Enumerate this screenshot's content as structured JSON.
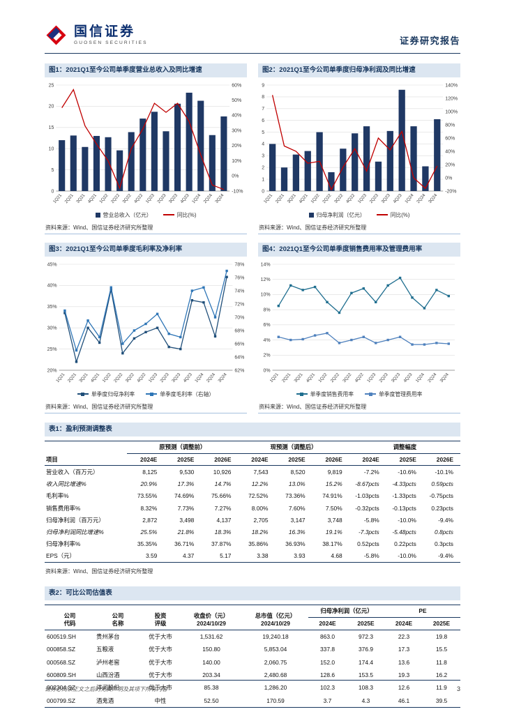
{
  "header": {
    "brand_cn": "国信证券",
    "brand_en": "GUOSEN SECURITIES",
    "report_type": "证券研究报告"
  },
  "source_note": "资料来源：Wind、国信证券经济研究所整理",
  "footer": {
    "disclaimer": "请务必阅读正文之后的免责声明及其项下所有内容",
    "page_number": "3"
  },
  "colors": {
    "navy": "#17365D",
    "bar_blue": "#1F3864",
    "line_red": "#C00000",
    "caption_bg": "#DCE6F1"
  },
  "charts": [
    {
      "title": "图1：2021Q1至今公司单季度营业总收入及同比增速",
      "chart_data": {
        "type": "bar-line",
        "categories": [
          "1Q21",
          "2Q21",
          "3Q21",
          "4Q21",
          "1Q22",
          "2Q22",
          "3Q22",
          "4Q22",
          "1Q23",
          "2Q23",
          "3Q23",
          "4Q23",
          "1Q24",
          "2Q24",
          "3Q24"
        ],
        "series": [
          {
            "name": "营业总收入（亿元）",
            "type": "bar",
            "axis": "left",
            "color": "#1F3864",
            "values": [
              12.0,
              13.1,
              10.4,
              13.0,
              12.7,
              9.6,
              13.9,
              17.1,
              18.7,
              14.1,
              20.6,
              23.2,
              21.3,
              13.2,
              17.6
            ]
          },
          {
            "name": "同比(%)",
            "type": "line",
            "axis": "right",
            "color": "#C00000",
            "marker": false,
            "values": [
              45,
              57,
              33,
              21,
              10,
              -8,
              18,
              31,
              48,
              42,
              48,
              36,
              14,
              -6,
              -9
            ]
          }
        ],
        "left_axis": {
          "min": 0,
          "max": 25,
          "step": 5,
          "fmt": ""
        },
        "right_axis": {
          "min": -10,
          "max": 60,
          "step": 10,
          "fmt": "%"
        }
      }
    },
    {
      "title": "图2：2021Q1至今公司单季度归母净利润及同比增速",
      "chart_data": {
        "type": "bar-line",
        "categories": [
          "1Q21",
          "2Q21",
          "3Q21",
          "4Q21",
          "1Q22",
          "2Q22",
          "3Q22",
          "4Q22",
          "1Q23",
          "2Q23",
          "3Q23",
          "4Q23",
          "1Q24",
          "2Q24",
          "3Q24"
        ],
        "series": [
          {
            "name": "归母净利润（亿元）",
            "type": "bar",
            "axis": "left",
            "color": "#1F3864",
            "values": [
              4.0,
              2.0,
              3.1,
              3.4,
              5.0,
              1.6,
              3.6,
              4.9,
              5.5,
              2.5,
              5.1,
              8.6,
              5.5,
              2.1,
              6.1
            ]
          },
          {
            "name": "同比(%)",
            "type": "line",
            "axis": "right",
            "color": "#C00000",
            "marker": false,
            "values": [
              125,
              48,
              40,
              22,
              25,
              -18,
              16,
              44,
              10,
              60,
              42,
              70,
              0,
              -16,
              18
            ]
          }
        ],
        "left_axis": {
          "min": 0,
          "max": 9,
          "step": 1,
          "fmt": ""
        },
        "right_axis": {
          "min": -20,
          "max": 140,
          "step": 20,
          "fmt": "%"
        }
      }
    },
    {
      "title": "图3：2021Q1至今公司单季度毛利率及净利率",
      "chart_data": {
        "type": "line",
        "categories": [
          "1Q21",
          "2Q21",
          "3Q21",
          "4Q21",
          "1Q22",
          "2Q22",
          "3Q22",
          "4Q22",
          "1Q23",
          "2Q23",
          "3Q23",
          "4Q23",
          "1Q24",
          "2Q24",
          "3Q24"
        ],
        "series": [
          {
            "name": "单季度归母净利率",
            "type": "line",
            "axis": "left",
            "color": "#1F4E79",
            "marker": true,
            "values": [
              33.5,
              22,
              30,
              26.5,
              39,
              24,
              27.5,
              29,
              30,
              25.5,
              25,
              36.5,
              36,
              28,
              42
            ]
          },
          {
            "name": "单季度毛利率（右轴）",
            "type": "line",
            "axis": "right",
            "color": "#2E75B6",
            "marker": true,
            "values": [
              71,
              65,
              69.5,
              67,
              74.5,
              66,
              68,
              69,
              70.5,
              67.5,
              67,
              74,
              74.5,
              70,
              77
            ]
          }
        ],
        "left_axis": {
          "min": 20,
          "max": 45,
          "step": 5,
          "fmt": "%"
        },
        "right_axis": {
          "min": 62,
          "max": 78,
          "step": 2,
          "fmt": "%"
        }
      }
    },
    {
      "title": "图4：2021Q1至今公司单季度销售费用率及管理费用率",
      "chart_data": {
        "type": "line",
        "categories": [
          "1Q21",
          "2Q21",
          "3Q21",
          "4Q21",
          "1Q22",
          "2Q22",
          "3Q22",
          "4Q22",
          "1Q23",
          "2Q23",
          "3Q23",
          "4Q23",
          "1Q24",
          "2Q24",
          "3Q24"
        ],
        "series": [
          {
            "name": "单季度销售费用率",
            "type": "line",
            "axis": "left",
            "color": "#1F6E8F",
            "marker": true,
            "values": [
              8.5,
              11.2,
              10.6,
              11.0,
              9.0,
              7.6,
              10.2,
              10.8,
              9.0,
              11.2,
              12.2,
              9.6,
              8.2,
              10.6,
              9.8
            ]
          },
          {
            "name": "单季度管理费用率",
            "type": "line",
            "axis": "left",
            "color": "#4F81BD",
            "marker": true,
            "values": [
              4.4,
              4.0,
              4.1,
              4.6,
              4.9,
              3.6,
              4.0,
              4.4,
              3.6,
              4.0,
              4.4,
              3.4,
              3.4,
              3.6,
              3.5
            ]
          }
        ],
        "left_axis": {
          "min": 0,
          "max": 14,
          "step": 2,
          "fmt": "%"
        }
      }
    }
  ],
  "table1": {
    "caption": "表1：盈利预测调整表",
    "item_header": "项目",
    "groups": [
      "原预测（调整前）",
      "现预测（调整后）",
      "调整幅度"
    ],
    "years": [
      "2024E",
      "2025E",
      "2026E"
    ],
    "rows": [
      {
        "label": "营业收入（百万元）",
        "italic": false,
        "values": [
          "8,125",
          "9,530",
          "10,926",
          "7,543",
          "8,520",
          "9,819",
          "-7.2%",
          "-10.6%",
          "-10.1%"
        ]
      },
      {
        "label": "收入同比增速%",
        "italic": true,
        "values": [
          "20.9%",
          "17.3%",
          "14.7%",
          "12.2%",
          "13.0%",
          "15.2%",
          "-8.67pcts",
          "-4.33pcts",
          "0.59pcts"
        ]
      },
      {
        "label": "毛利率%",
        "italic": false,
        "values": [
          "73.55%",
          "74.69%",
          "75.66%",
          "72.52%",
          "73.36%",
          "74.91%",
          "-1.03pcts",
          "-1.33pcts",
          "-0.75pcts"
        ]
      },
      {
        "label": "销售费用率%",
        "italic": false,
        "values": [
          "8.32%",
          "7.73%",
          "7.27%",
          "8.00%",
          "7.60%",
          "7.50%",
          "-0.32pcts",
          "-0.13pcts",
          "0.23pcts"
        ]
      },
      {
        "label": "归母净利润（百万元）",
        "italic": false,
        "values": [
          "2,872",
          "3,498",
          "4,137",
          "2,705",
          "3,147",
          "3,748",
          "-5.8%",
          "-10.0%",
          "-9.4%"
        ]
      },
      {
        "label": "归母净利润同比增速%",
        "italic": true,
        "values": [
          "25.5%",
          "21.8%",
          "18.3%",
          "18.2%",
          "16.3%",
          "19.1%",
          "-7.3pcts",
          "-5.48pcts",
          "0.8pcts"
        ]
      },
      {
        "label": "归母净利率%",
        "italic": false,
        "values": [
          "35.35%",
          "36.71%",
          "37.87%",
          "35.86%",
          "36.93%",
          "38.17%",
          "0.52pcts",
          "0.22pcts",
          "0.3pcts"
        ]
      },
      {
        "label": "EPS（元）",
        "italic": false,
        "values": [
          "3.59",
          "4.37",
          "5.17",
          "3.38",
          "3.93",
          "4.68",
          "-5.8%",
          "-10.0%",
          "-9.4%"
        ]
      }
    ]
  },
  "table2": {
    "caption": "表2：可比公司估值表",
    "headers": {
      "code": "公司\n代码",
      "name": "公司\n名称",
      "rating": "投资\n评级",
      "price": "收盘价（元）\n2024/10/29",
      "mktcap": "总市值（亿元）\n2024/10/29",
      "profit_group": "归母净利润（亿元）",
      "pe_group": "PE"
    },
    "years": [
      "2024E",
      "2025E"
    ],
    "rows": [
      [
        "600519.SH",
        "贵州茅台",
        "优于大市",
        "1,531.62",
        "19,240.18",
        "863.0",
        "972.3",
        "22.3",
        "19.8"
      ],
      [
        "000858.SZ",
        "五粮液",
        "优于大市",
        "150.80",
        "5,853.04",
        "337.8",
        "376.9",
        "17.3",
        "15.5"
      ],
      [
        "000568.SZ",
        "泸州老窖",
        "优于大市",
        "140.00",
        "2,060.75",
        "152.0",
        "174.4",
        "13.6",
        "11.8"
      ],
      [
        "600809.SH",
        "山西汾酒",
        "优于大市",
        "203.34",
        "2,480.68",
        "128.6",
        "153.5",
        "19.3",
        "16.2"
      ],
      [
        "002304.SZ",
        "洋河股份",
        "优于大市",
        "85.38",
        "1,286.20",
        "102.3",
        "108.3",
        "12.6",
        "11.9"
      ],
      [
        "000799.SZ",
        "酒鬼酒",
        "中性",
        "52.50",
        "170.59",
        "3.7",
        "4.3",
        "46.1",
        "39.5"
      ]
    ]
  }
}
